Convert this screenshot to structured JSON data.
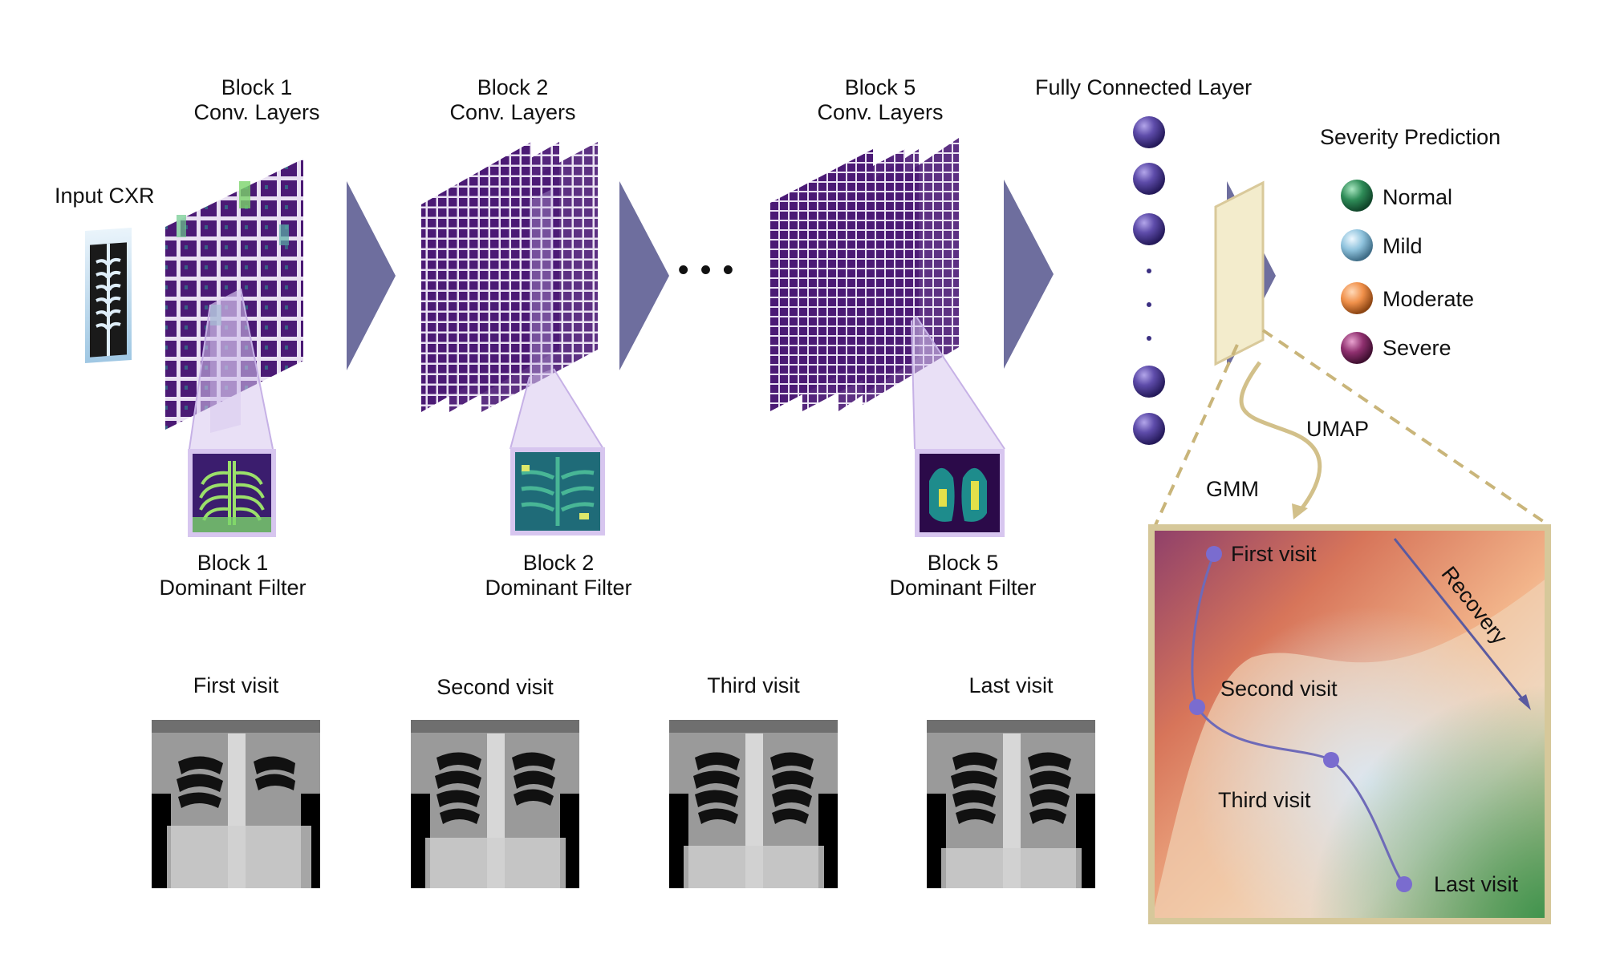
{
  "input": {
    "label": "Input CXR"
  },
  "blocks": [
    {
      "title_line1": "Block 1",
      "title_line2": "Conv. Layers",
      "filter_line1": "Block 1",
      "filter_line2": "Dominant Filter"
    },
    {
      "title_line1": "Block 2",
      "title_line2": "Conv. Layers",
      "filter_line1": "Block 2",
      "filter_line2": "Dominant Filter"
    },
    {
      "title_line1": "Block 5",
      "title_line2": "Conv. Layers",
      "filter_line1": "Block 5",
      "filter_line2": "Dominant Filter"
    }
  ],
  "ellipsis": "• • •",
  "fc": {
    "title": "Fully Connected Layer"
  },
  "severity": {
    "title": "Severity Prediction",
    "classes": [
      {
        "label": "Normal",
        "color": "#2e8b57"
      },
      {
        "label": "Mild",
        "color": "#8fc3dd"
      },
      {
        "label": "Moderate",
        "color": "#f0904a"
      },
      {
        "label": "Severe",
        "color": "#8e2f6e"
      }
    ]
  },
  "umap_label": "UMAP",
  "gmm_label": "GMM",
  "trajectory": {
    "recovery_label": "Recovery",
    "points": [
      "First visit",
      "Second visit",
      "Third visit",
      "Last visit"
    ]
  },
  "visits": [
    "First visit",
    "Second visit",
    "Third visit",
    "Last visit"
  ],
  "colors": {
    "arrow": "#6e6e9e",
    "node": "#4a3d8f",
    "panel_border": "#d6c89a",
    "feature_map": "#4b1a75"
  }
}
